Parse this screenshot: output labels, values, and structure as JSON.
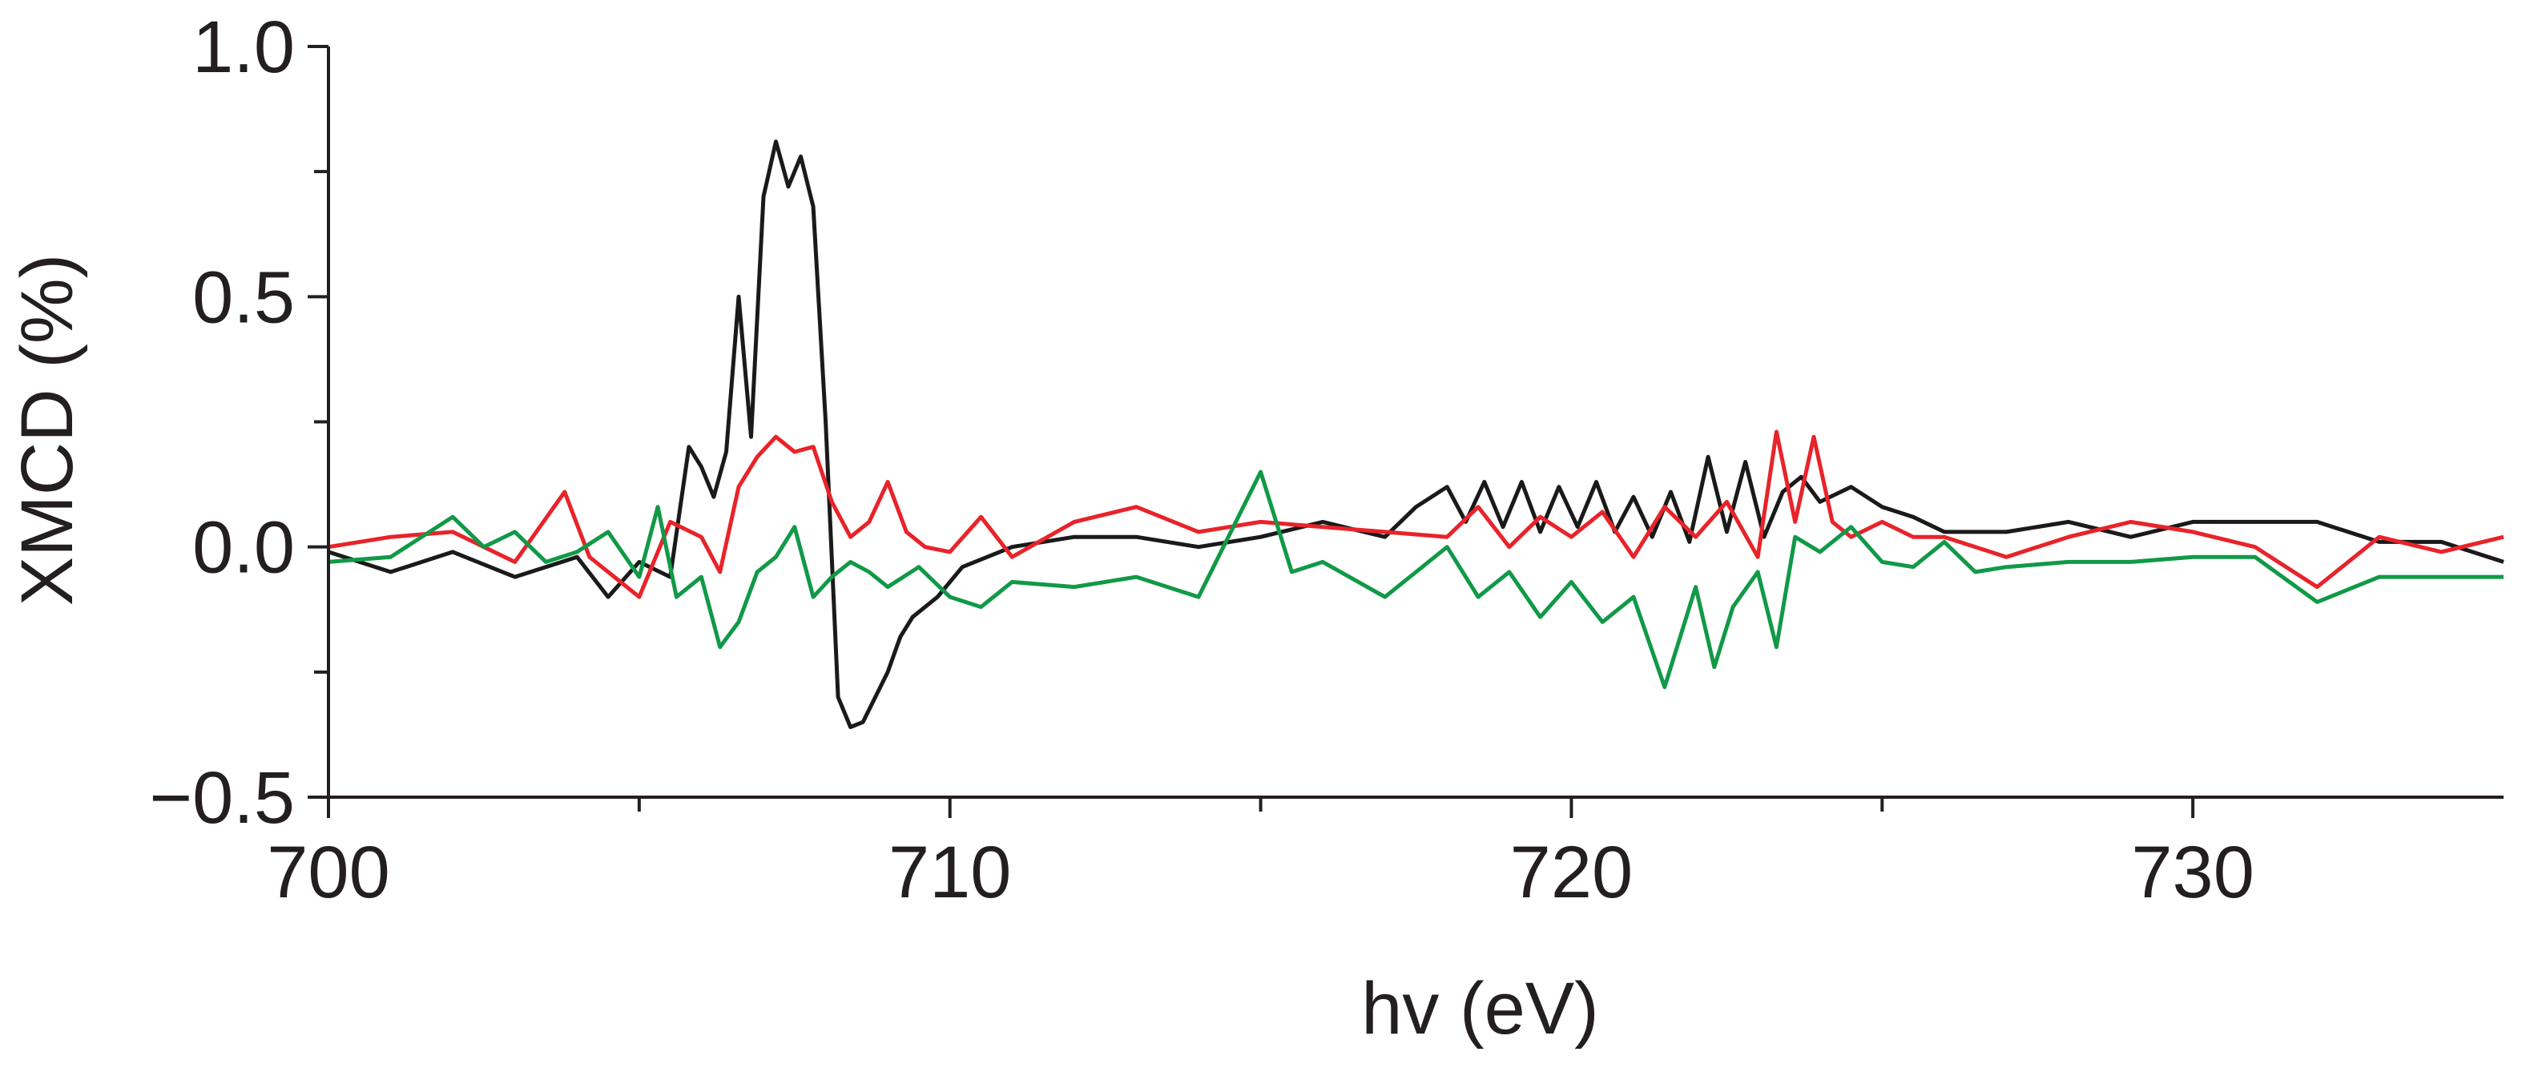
{
  "chart_data": {
    "type": "line",
    "xlabel": "hv (eV)",
    "ylabel": "XMCD (%)",
    "xlim": [
      700,
      735
    ],
    "ylim": [
      -0.5,
      1.0
    ],
    "x_ticks": [
      700,
      710,
      720,
      730
    ],
    "x_tick_labels": [
      "700",
      "710",
      "720",
      "730"
    ],
    "x_minor_ticks": [
      705,
      715,
      725
    ],
    "y_ticks": [
      -0.5,
      0.0,
      0.5,
      1.0
    ],
    "y_tick_labels": [
      "−0.5",
      "0.0",
      "0.5",
      "1.0"
    ],
    "y_minor_ticks": [
      -0.25,
      0.25,
      0.75
    ],
    "grid": false,
    "legend": "none",
    "series": [
      {
        "color": "#1a1a1a",
        "points": [
          [
            700,
            -0.01
          ],
          [
            701,
            -0.05
          ],
          [
            702,
            -0.01
          ],
          [
            703,
            -0.06
          ],
          [
            704,
            -0.02
          ],
          [
            704.5,
            -0.1
          ],
          [
            705,
            -0.03
          ],
          [
            705.5,
            -0.06
          ],
          [
            705.8,
            0.2
          ],
          [
            706.0,
            0.16
          ],
          [
            706.2,
            0.1
          ],
          [
            706.4,
            0.19
          ],
          [
            706.6,
            0.5
          ],
          [
            706.8,
            0.22
          ],
          [
            707.0,
            0.7
          ],
          [
            707.2,
            0.81
          ],
          [
            707.4,
            0.72
          ],
          [
            707.6,
            0.78
          ],
          [
            707.8,
            0.68
          ],
          [
            708.0,
            0.25
          ],
          [
            708.2,
            -0.3
          ],
          [
            708.4,
            -0.36
          ],
          [
            708.6,
            -0.35
          ],
          [
            708.8,
            -0.3
          ],
          [
            709.0,
            -0.25
          ],
          [
            709.2,
            -0.18
          ],
          [
            709.4,
            -0.14
          ],
          [
            709.8,
            -0.1
          ],
          [
            710.2,
            -0.04
          ],
          [
            711,
            0.0
          ],
          [
            712,
            0.02
          ],
          [
            713,
            0.02
          ],
          [
            714,
            0.0
          ],
          [
            715,
            0.02
          ],
          [
            716,
            0.05
          ],
          [
            717,
            0.02
          ],
          [
            717.5,
            0.08
          ],
          [
            718,
            0.12
          ],
          [
            718.3,
            0.05
          ],
          [
            718.6,
            0.13
          ],
          [
            718.9,
            0.04
          ],
          [
            719.2,
            0.13
          ],
          [
            719.5,
            0.03
          ],
          [
            719.8,
            0.12
          ],
          [
            720.1,
            0.04
          ],
          [
            720.4,
            0.13
          ],
          [
            720.7,
            0.03
          ],
          [
            721,
            0.1
          ],
          [
            721.3,
            0.02
          ],
          [
            721.6,
            0.11
          ],
          [
            721.9,
            0.01
          ],
          [
            722.2,
            0.18
          ],
          [
            722.5,
            0.03
          ],
          [
            722.8,
            0.17
          ],
          [
            723.1,
            0.02
          ],
          [
            723.4,
            0.11
          ],
          [
            723.7,
            0.14
          ],
          [
            724,
            0.09
          ],
          [
            724.5,
            0.12
          ],
          [
            725,
            0.08
          ],
          [
            725.5,
            0.06
          ],
          [
            726,
            0.03
          ],
          [
            727,
            0.03
          ],
          [
            728,
            0.05
          ],
          [
            729,
            0.02
          ],
          [
            730,
            0.05
          ],
          [
            731,
            0.05
          ],
          [
            732,
            0.05
          ],
          [
            733,
            0.01
          ],
          [
            734,
            0.01
          ],
          [
            735,
            -0.03
          ]
        ]
      },
      {
        "color": "#e8232a",
        "points": [
          [
            700,
            0.0
          ],
          [
            701,
            0.02
          ],
          [
            702,
            0.03
          ],
          [
            703,
            -0.03
          ],
          [
            703.8,
            0.11
          ],
          [
            704.2,
            -0.02
          ],
          [
            705,
            -0.1
          ],
          [
            705.5,
            0.05
          ],
          [
            706,
            0.02
          ],
          [
            706.3,
            -0.05
          ],
          [
            706.6,
            0.12
          ],
          [
            706.9,
            0.18
          ],
          [
            707.2,
            0.22
          ],
          [
            707.5,
            0.19
          ],
          [
            707.8,
            0.2
          ],
          [
            708.1,
            0.09
          ],
          [
            708.4,
            0.02
          ],
          [
            708.7,
            0.05
          ],
          [
            709,
            0.13
          ],
          [
            709.3,
            0.03
          ],
          [
            709.6,
            0.0
          ],
          [
            710,
            -0.01
          ],
          [
            710.5,
            0.06
          ],
          [
            711,
            -0.02
          ],
          [
            712,
            0.05
          ],
          [
            713,
            0.08
          ],
          [
            714,
            0.03
          ],
          [
            715,
            0.05
          ],
          [
            716,
            0.04
          ],
          [
            717,
            0.03
          ],
          [
            718,
            0.02
          ],
          [
            718.5,
            0.08
          ],
          [
            719,
            0.0
          ],
          [
            719.5,
            0.06
          ],
          [
            720,
            0.02
          ],
          [
            720.5,
            0.07
          ],
          [
            721,
            -0.02
          ],
          [
            721.5,
            0.08
          ],
          [
            722,
            0.02
          ],
          [
            722.5,
            0.09
          ],
          [
            723,
            -0.02
          ],
          [
            723.3,
            0.23
          ],
          [
            723.6,
            0.05
          ],
          [
            723.9,
            0.22
          ],
          [
            724.2,
            0.05
          ],
          [
            724.5,
            0.02
          ],
          [
            725,
            0.05
          ],
          [
            725.5,
            0.02
          ],
          [
            726,
            0.02
          ],
          [
            727,
            -0.02
          ],
          [
            728,
            0.02
          ],
          [
            729,
            0.05
          ],
          [
            730,
            0.03
          ],
          [
            731,
            0.0
          ],
          [
            732,
            -0.08
          ],
          [
            733,
            0.02
          ],
          [
            734,
            -0.01
          ],
          [
            735,
            0.02
          ]
        ]
      },
      {
        "color": "#119947",
        "points": [
          [
            700,
            -0.03
          ],
          [
            701,
            -0.02
          ],
          [
            702,
            0.06
          ],
          [
            702.5,
            0.0
          ],
          [
            703,
            0.03
          ],
          [
            703.5,
            -0.03
          ],
          [
            704,
            -0.01
          ],
          [
            704.5,
            0.03
          ],
          [
            705,
            -0.06
          ],
          [
            705.3,
            0.08
          ],
          [
            705.6,
            -0.1
          ],
          [
            706,
            -0.06
          ],
          [
            706.3,
            -0.2
          ],
          [
            706.6,
            -0.15
          ],
          [
            706.9,
            -0.05
          ],
          [
            707.2,
            -0.02
          ],
          [
            707.5,
            0.04
          ],
          [
            707.8,
            -0.1
          ],
          [
            708.1,
            -0.06
          ],
          [
            708.4,
            -0.03
          ],
          [
            708.7,
            -0.05
          ],
          [
            709,
            -0.08
          ],
          [
            709.5,
            -0.04
          ],
          [
            710,
            -0.1
          ],
          [
            710.5,
            -0.12
          ],
          [
            711,
            -0.07
          ],
          [
            712,
            -0.08
          ],
          [
            713,
            -0.06
          ],
          [
            714,
            -0.1
          ],
          [
            715,
            0.15
          ],
          [
            715.5,
            -0.05
          ],
          [
            716,
            -0.03
          ],
          [
            717,
            -0.1
          ],
          [
            718,
            0.0
          ],
          [
            718.5,
            -0.1
          ],
          [
            719,
            -0.05
          ],
          [
            719.5,
            -0.14
          ],
          [
            720,
            -0.07
          ],
          [
            720.5,
            -0.15
          ],
          [
            721,
            -0.1
          ],
          [
            721.5,
            -0.28
          ],
          [
            722,
            -0.08
          ],
          [
            722.3,
            -0.24
          ],
          [
            722.6,
            -0.12
          ],
          [
            723,
            -0.05
          ],
          [
            723.3,
            -0.2
          ],
          [
            723.6,
            0.02
          ],
          [
            724,
            -0.01
          ],
          [
            724.5,
            0.04
          ],
          [
            725,
            -0.03
          ],
          [
            725.5,
            -0.04
          ],
          [
            726,
            0.01
          ],
          [
            726.5,
            -0.05
          ],
          [
            727,
            -0.04
          ],
          [
            728,
            -0.03
          ],
          [
            729,
            -0.03
          ],
          [
            730,
            -0.02
          ],
          [
            731,
            -0.02
          ],
          [
            732,
            -0.11
          ],
          [
            733,
            -0.06
          ],
          [
            734,
            -0.06
          ],
          [
            735,
            -0.06
          ]
        ]
      }
    ]
  }
}
